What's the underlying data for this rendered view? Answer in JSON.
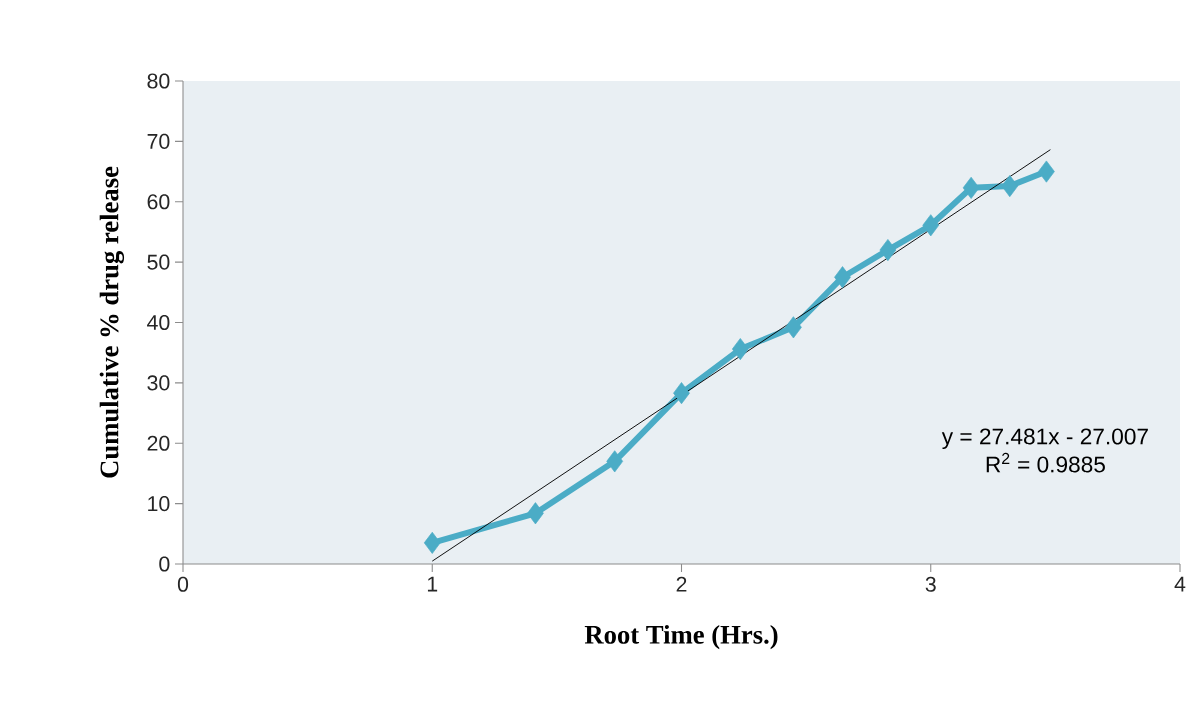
{
  "chart_data": {
    "type": "line",
    "xlabel": "Root Time (Hrs.)",
    "ylabel": "Cumulative % drug release",
    "xlim": [
      0,
      4
    ],
    "xticks": [
      0,
      1,
      2,
      3,
      4
    ],
    "ylim": [
      0,
      80
    ],
    "yticks": [
      0,
      10,
      20,
      30,
      40,
      50,
      60,
      70,
      80
    ],
    "marker": "diamond",
    "x": [
      1,
      1.414,
      1.732,
      2,
      2.236,
      2.449,
      2.646,
      2.828,
      3,
      3.162,
      3.317,
      3.464
    ],
    "series": [
      {
        "color": "#4bacc6",
        "values": [
          3.5,
          8.4,
          17,
          28.3,
          35.6,
          39.2,
          47.5,
          52,
          56.1,
          62.3,
          62.6,
          65
        ]
      },
      {
        "type": "line",
        "x": [
          1,
          3.48
        ],
        "values": [
          0.474,
          68.627
        ],
        "color": "#000000",
        "marker": "none"
      }
    ],
    "annotations": [
      "y = 27.481x - 27.007",
      "R$^{2}$ = 0.9885"
    ]
  }
}
